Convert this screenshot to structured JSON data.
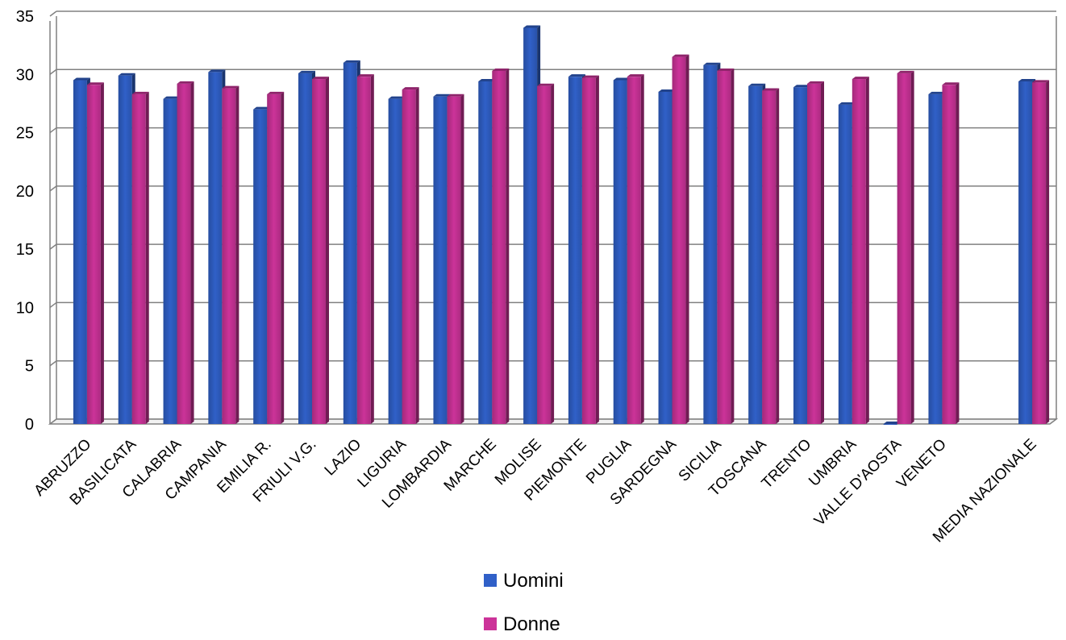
{
  "chart_data": {
    "type": "bar",
    "title": "",
    "xlabel": "",
    "ylabel": "",
    "ylim": [
      0,
      35
    ],
    "yticks": [
      0,
      5,
      10,
      15,
      20,
      25,
      30,
      35
    ],
    "grid": true,
    "legend_position": "bottom",
    "categories": [
      "ABRUZZO",
      "BASILICATA",
      "CALABRIA",
      "CAMPANIA",
      "EMILIA R.",
      "FRIULI V.G.",
      "LAZIO",
      "LIGURIA",
      "LOMBARDIA",
      "MARCHE",
      "MOLISE",
      "PIEMONTE",
      "PUGLIA",
      "SARDEGNA",
      "SICILIA",
      "TOSCANA",
      "TRENTO",
      "UMBRIA",
      "VALLE D'AOSTA",
      "VENETO",
      "",
      "MEDIA NAZIONALE"
    ],
    "series": [
      {
        "name": "Uomini",
        "color": "#3060c8",
        "values": [
          29.5,
          29.9,
          27.9,
          30.2,
          27.0,
          30.1,
          31.0,
          27.9,
          28.1,
          29.4,
          34.0,
          29.8,
          29.5,
          28.5,
          30.8,
          29.0,
          28.9,
          27.4,
          0,
          28.3,
          null,
          29.4
        ]
      },
      {
        "name": "Donne",
        "color": "#cc3399",
        "values": [
          29.1,
          28.3,
          29.2,
          28.8,
          28.3,
          29.6,
          29.8,
          28.7,
          28.1,
          30.3,
          29.0,
          29.7,
          29.8,
          31.5,
          30.3,
          28.6,
          29.2,
          29.6,
          30.1,
          29.1,
          null,
          29.3
        ]
      }
    ]
  }
}
